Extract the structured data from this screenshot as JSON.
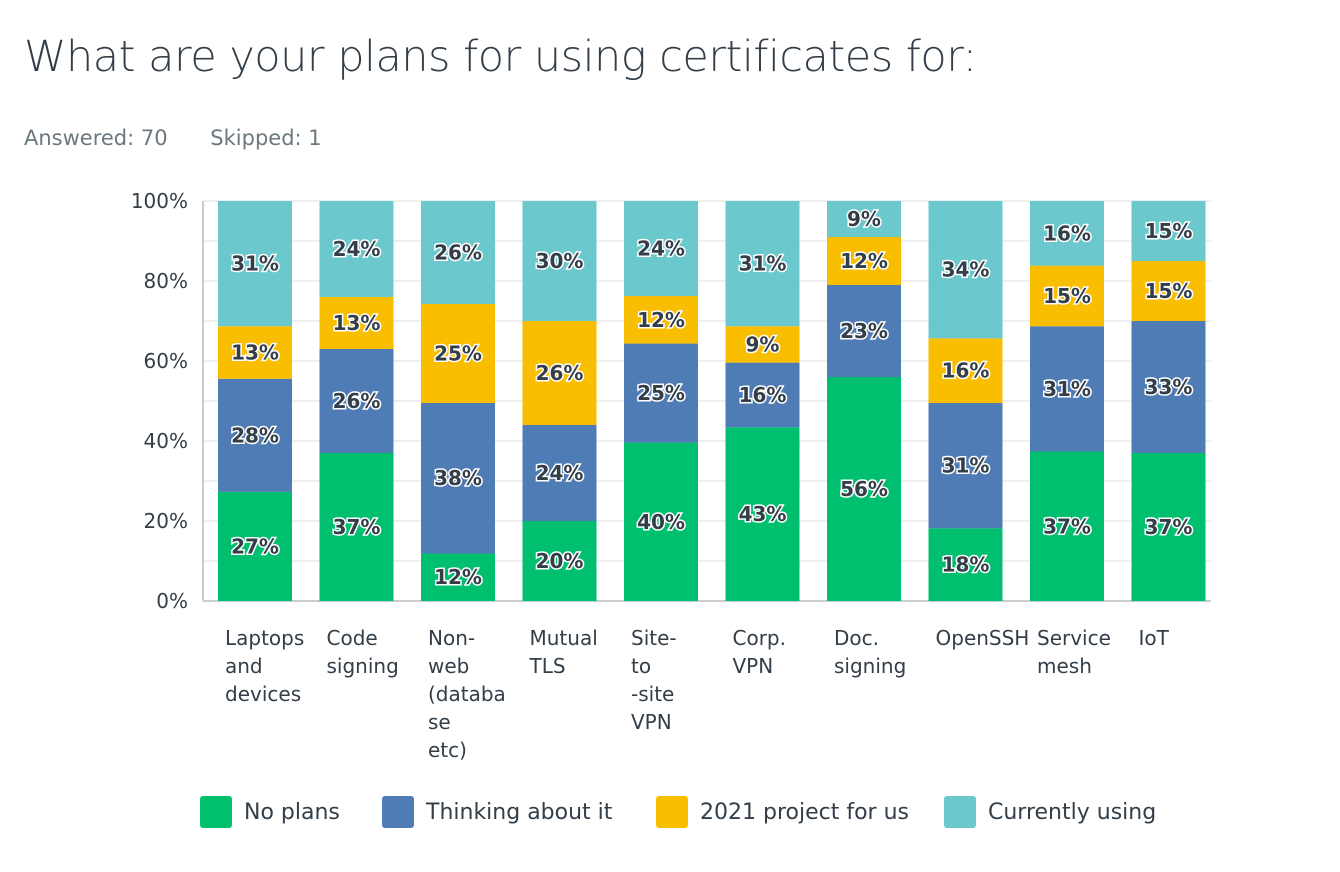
{
  "header": {
    "title": "What are your plans for using certificates for:",
    "answered": "Answered: 70",
    "skipped": "Skipped: 1"
  },
  "chart_data": {
    "type": "bar",
    "stacked": true,
    "title": "What are your plans for using certificates for:",
    "categories": [
      "Laptops and devices",
      "Code signing",
      "Non-web (database etc)",
      "Mutual TLS",
      "Site-to-site VPN",
      "Corp. VPN",
      "Doc. signing",
      "OpenSSH",
      "Service mesh",
      "IoT"
    ],
    "category_lines": [
      [
        "Laptops",
        "and",
        "devices"
      ],
      [
        "Code",
        "signing"
      ],
      [
        "Non-",
        "web",
        "(databa",
        "se",
        "etc)"
      ],
      [
        "Mutual",
        "TLS"
      ],
      [
        "Site-",
        "to",
        "-site",
        "VPN"
      ],
      [
        "Corp.",
        "VPN"
      ],
      [
        "Doc.",
        "signing"
      ],
      [
        "OpenSSH"
      ],
      [
        "Service",
        "mesh"
      ],
      [
        "IoT"
      ]
    ],
    "series": [
      {
        "name": "No plans",
        "color": "#00bf6f",
        "values": [
          27,
          37,
          12,
          20,
          40,
          43,
          56,
          18,
          37,
          37
        ]
      },
      {
        "name": "Thinking about it",
        "color": "#507cb6",
        "values": [
          28,
          26,
          38,
          24,
          25,
          16,
          23,
          31,
          31,
          33
        ]
      },
      {
        "name": "2021 project for us",
        "color": "#f9be00",
        "values": [
          13,
          13,
          25,
          26,
          12,
          9,
          12,
          16,
          15,
          15
        ]
      },
      {
        "name": "Currently using",
        "color": "#6bc8cd",
        "values": [
          31,
          24,
          26,
          30,
          24,
          31,
          9,
          34,
          16,
          15
        ]
      }
    ],
    "yticks": [
      "0%",
      "20%",
      "40%",
      "60%",
      "80%",
      "100%"
    ],
    "ylim": [
      0,
      100
    ],
    "grid": true,
    "legend": "bottom"
  }
}
